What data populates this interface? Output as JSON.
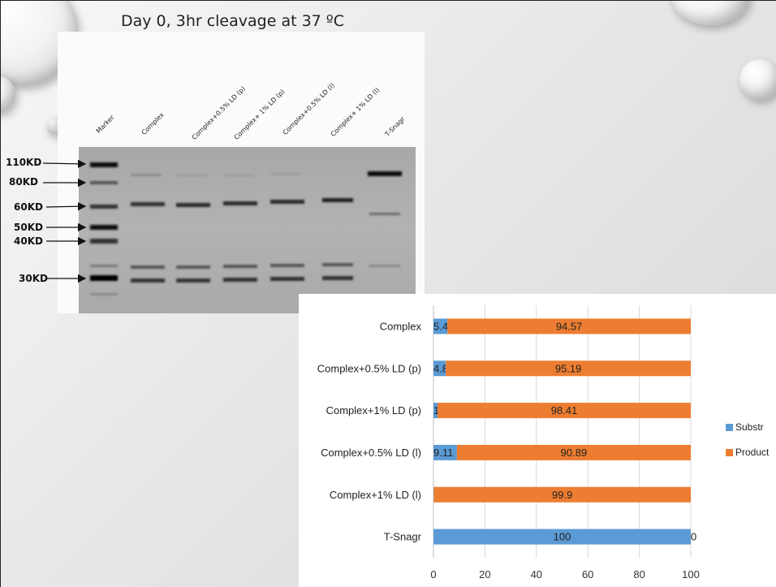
{
  "slide": {
    "title": "Day 0,  3hr cleavage at 37 ºC"
  },
  "gel": {
    "lane_labels": [
      "Marker",
      "Complex",
      "Complex+0.5% LD (p)",
      "Complex+ 1% LD (p)",
      "Complex+0.5% LD (l)",
      "Complex+ 1% LD (l)",
      "T-Snagr"
    ],
    "marker_labels": [
      "110KD",
      "80KD",
      "60KD",
      "50KD",
      "40KD",
      "30KD"
    ]
  },
  "chart_data": {
    "type": "bar",
    "orientation": "horizontal",
    "stacked": true,
    "categories": [
      "Complex",
      "Complex+0.5% LD (p)",
      "Complex+1% LD (p)",
      "Complex+0.5% LD (l)",
      "Complex+1% LD (l)",
      "T-Snagr"
    ],
    "series": [
      {
        "name": "Substr",
        "color": "#5b9bd5",
        "values": [
          5.43,
          4.81,
          1.59,
          9.11,
          0.1,
          100
        ]
      },
      {
        "name": "Product",
        "color": "#ed7d31",
        "values": [
          94.57,
          95.19,
          98.41,
          90.89,
          99.9,
          0
        ]
      }
    ],
    "data_labels": {
      "Substr": [
        "5.43",
        "4.81",
        "1.59",
        "9.11",
        "0.1",
        "100"
      ],
      "Product": [
        "94.57",
        "95.19",
        "98.41",
        "90.89",
        "99.9",
        "0"
      ]
    },
    "xlim": [
      0,
      100
    ],
    "xticks": [
      "0",
      "20",
      "40",
      "60",
      "80",
      "100"
    ],
    "grid": true,
    "legend": "right"
  }
}
